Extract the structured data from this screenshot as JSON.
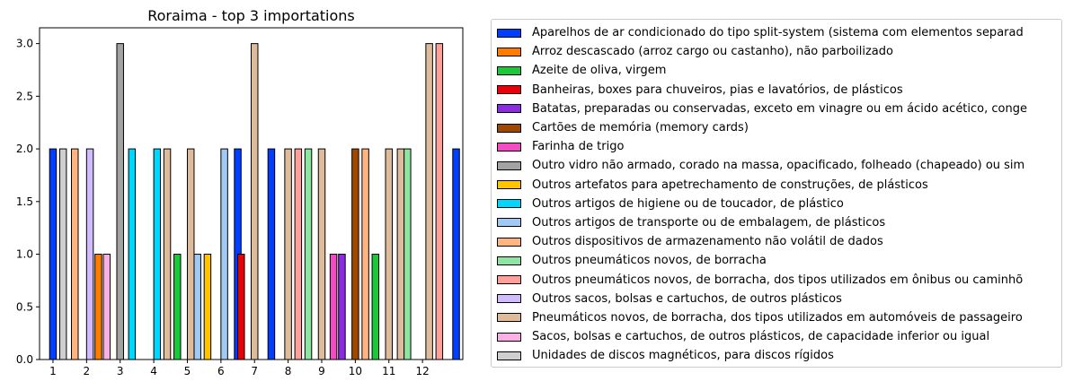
{
  "chart_data": {
    "type": "bar",
    "title": "Roraima - top 3 importations",
    "xlabel": "",
    "ylabel": "",
    "ylim": [
      0,
      3.15
    ],
    "xlim": [
      0.6,
      13.2
    ],
    "x_ticks": [
      1,
      2,
      3,
      4,
      5,
      6,
      7,
      8,
      9,
      10,
      11,
      12
    ],
    "y_ticks": [
      "0.0",
      "0.5",
      "1.0",
      "1.5",
      "2.0",
      "2.5",
      "3.0"
    ],
    "grid": false,
    "legend_position": "outside-right",
    "bar_width": 0.2,
    "series": [
      {
        "name": "Aparelhos de ar condicionado do tipo split-system (sistema com elementos separad",
        "color": "#023eff",
        "points": [
          [
            1,
            2
          ],
          [
            7.5,
            2
          ],
          [
            13,
            2
          ],
          [
            6.5,
            2
          ]
        ]
      },
      {
        "name": "Arroz descascado (arroz cargo ou castanho), não parboilizado",
        "color": "#ff7c00",
        "points": [
          [
            2.35,
            1
          ]
        ]
      },
      {
        "name": "Azeite de oliva, virgem",
        "color": "#1ac938",
        "points": [
          [
            4.7,
            1
          ],
          [
            10.6,
            1
          ]
        ]
      },
      {
        "name": "Banheiras, boxes para chuveiros, pias e lavatórios, de plásticos",
        "color": "#e8000b",
        "points": [
          [
            6.6,
            1
          ]
        ]
      },
      {
        "name": "Batatas, preparadas ou conservadas, exceto em vinagre ou em ácido acético, conge",
        "color": "#8b2be2",
        "points": [
          [
            9.6,
            1
          ]
        ]
      },
      {
        "name": "Cartões de memória (memory cards)",
        "color": "#9f4800",
        "points": [
          [
            10,
            2
          ]
        ]
      },
      {
        "name": "Farinha de trigo",
        "color": "#f14cc1",
        "points": [
          [
            9.35,
            1
          ]
        ]
      },
      {
        "name": "Outro vidro não armado, corado na massa, opacificado, folheado (chapeado) ou sim",
        "color": "#a3a3a3",
        "points": [
          [
            3,
            3
          ]
        ]
      },
      {
        "name": "Outros artefatos para apetrechamento de construções, de plásticos",
        "color": "#ffc400",
        "points": [
          [
            5.6,
            1
          ]
        ]
      },
      {
        "name": "Outros artigos de higiene ou de toucador, de plástico",
        "color": "#00d7ff",
        "points": [
          [
            3.35,
            2
          ],
          [
            4.1,
            2
          ]
        ]
      },
      {
        "name": "Outros artigos de transporte ou de embalagem, de plásticos",
        "color": "#a1c9f4",
        "points": [
          [
            5.3,
            1
          ],
          [
            6.1,
            2
          ]
        ]
      },
      {
        "name": "Outros dispositivos de armazenamento não volátil de dados",
        "color": "#ffb482",
        "points": [
          [
            1.65,
            2
          ],
          [
            10.3,
            2
          ]
        ]
      },
      {
        "name": "Outros pneumáticos novos, de borracha",
        "color": "#8de5a1",
        "points": [
          [
            8.6,
            2
          ],
          [
            11.55,
            2
          ]
        ]
      },
      {
        "name": "Outros pneumáticos novos, de borracha, dos tipos utilizados em ônibus ou caminhõ",
        "color": "#ff9f9b",
        "points": [
          [
            8.3,
            2
          ],
          [
            12.5,
            3
          ]
        ]
      },
      {
        "name": "Outros sacos, bolsas e cartuchos, de outros plásticos",
        "color": "#d0bbff",
        "points": [
          [
            2.1,
            2
          ]
        ]
      },
      {
        "name": "Pneumáticos novos, de borracha, dos tipos utilizados em automóveis de passageiro",
        "color": "#debb9b",
        "points": [
          [
            4.4,
            2
          ],
          [
            5.1,
            2
          ],
          [
            7,
            3
          ],
          [
            8,
            2
          ],
          [
            9,
            2
          ],
          [
            11,
            2
          ],
          [
            11.35,
            2
          ],
          [
            12.2,
            3
          ]
        ]
      },
      {
        "name": "Sacos, bolsas e cartuchos, de outros plásticos, de capacidade inferior ou igual",
        "color": "#fab0e4",
        "points": [
          [
            2.6,
            1
          ]
        ]
      },
      {
        "name": "Unidades de discos magnéticos, para discos rígidos",
        "color": "#cfcfcf",
        "points": [
          [
            1.3,
            2
          ]
        ]
      }
    ]
  }
}
